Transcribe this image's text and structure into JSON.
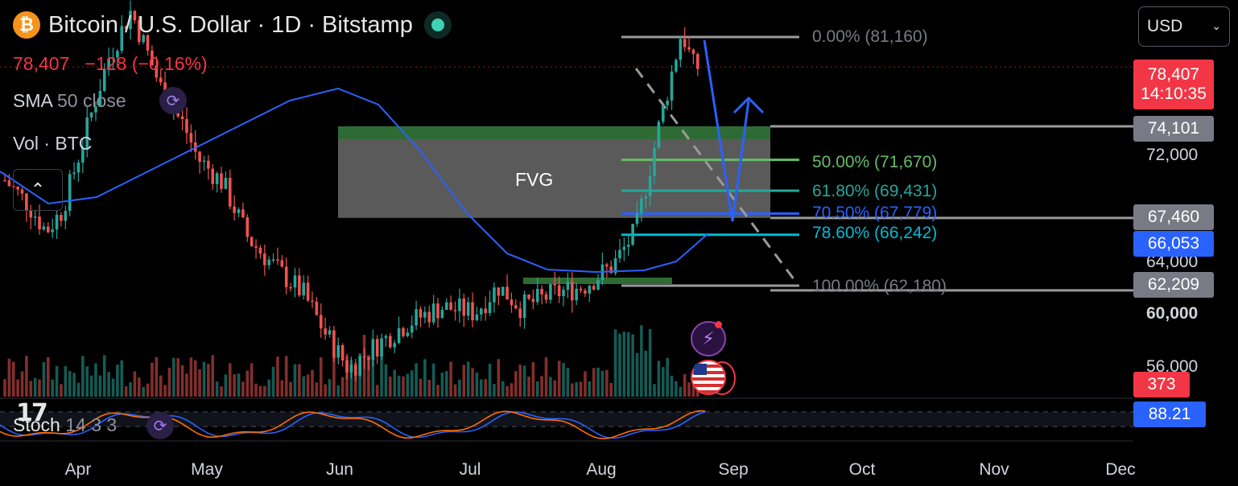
{
  "header": {
    "title": "Bitcoin / U.S. Dollar · 1D · Bitstamp",
    "coin_symbol": "₿",
    "last_price": "78,407",
    "change": "−128 (−0.16%)"
  },
  "indicators": {
    "sma_name": "SMA",
    "sma_params": "50 close",
    "vol_label": "Vol · BTC",
    "stoch_name": "Stoch",
    "stoch_params": "14 3 3"
  },
  "currency": {
    "selected": "USD"
  },
  "price_tags": {
    "last_price": "78,407",
    "countdown": "14:10:35",
    "level_74101": "74,101",
    "level_67460": "67,460",
    "sma_value": "66,053",
    "level_62209": "62,209",
    "volume": "373",
    "stoch_value": "88.21"
  },
  "annotations": {
    "fvg_label": "FVG",
    "fib_0": "0.00% (81,160)",
    "fib_50": "50.00% (71,670)",
    "fib_618": "61.80% (69,431)",
    "fib_705": "70.50% (67,779)",
    "fib_786": "78.60% (66,242)",
    "fib_100": "100.00% (62,180)"
  },
  "colors": {
    "up": "#26a69a",
    "down": "#ef5350",
    "sma": "#2962ff",
    "fvg_zone": "#6a6a6a",
    "fib_50": "#66bb6a",
    "fib_618": "#26a69a",
    "fib_705": "#2962ff",
    "fib_786": "#00bcd4",
    "stoch_k": "#2962ff",
    "stoch_d": "#ff6d00",
    "tag_red": "#f23645",
    "tag_blue": "#2962ff",
    "tag_gray": "#787b86"
  },
  "chart_data": {
    "type": "candlestick",
    "y_ticks": [
      "72,000",
      "64,000",
      "60,000",
      "56,000"
    ],
    "x_ticks": [
      "Apr",
      "May",
      "Jun",
      "Jul",
      "Aug",
      "Sep",
      "Oct",
      "Nov",
      "Dec"
    ],
    "fibonacci": [
      {
        "level": 0.0,
        "price": 81160
      },
      {
        "level": 0.5,
        "price": 71670
      },
      {
        "level": 0.618,
        "price": 69431
      },
      {
        "level": 0.705,
        "price": 67779
      },
      {
        "level": 0.786,
        "price": 66242
      },
      {
        "level": 1.0,
        "price": 62180
      }
    ],
    "fvg_zone": {
      "top": 74101,
      "bottom": 67460
    },
    "last_price": 78407,
    "sma50_last": 66053,
    "volume_last": 373,
    "stoch_last": 88.21
  }
}
